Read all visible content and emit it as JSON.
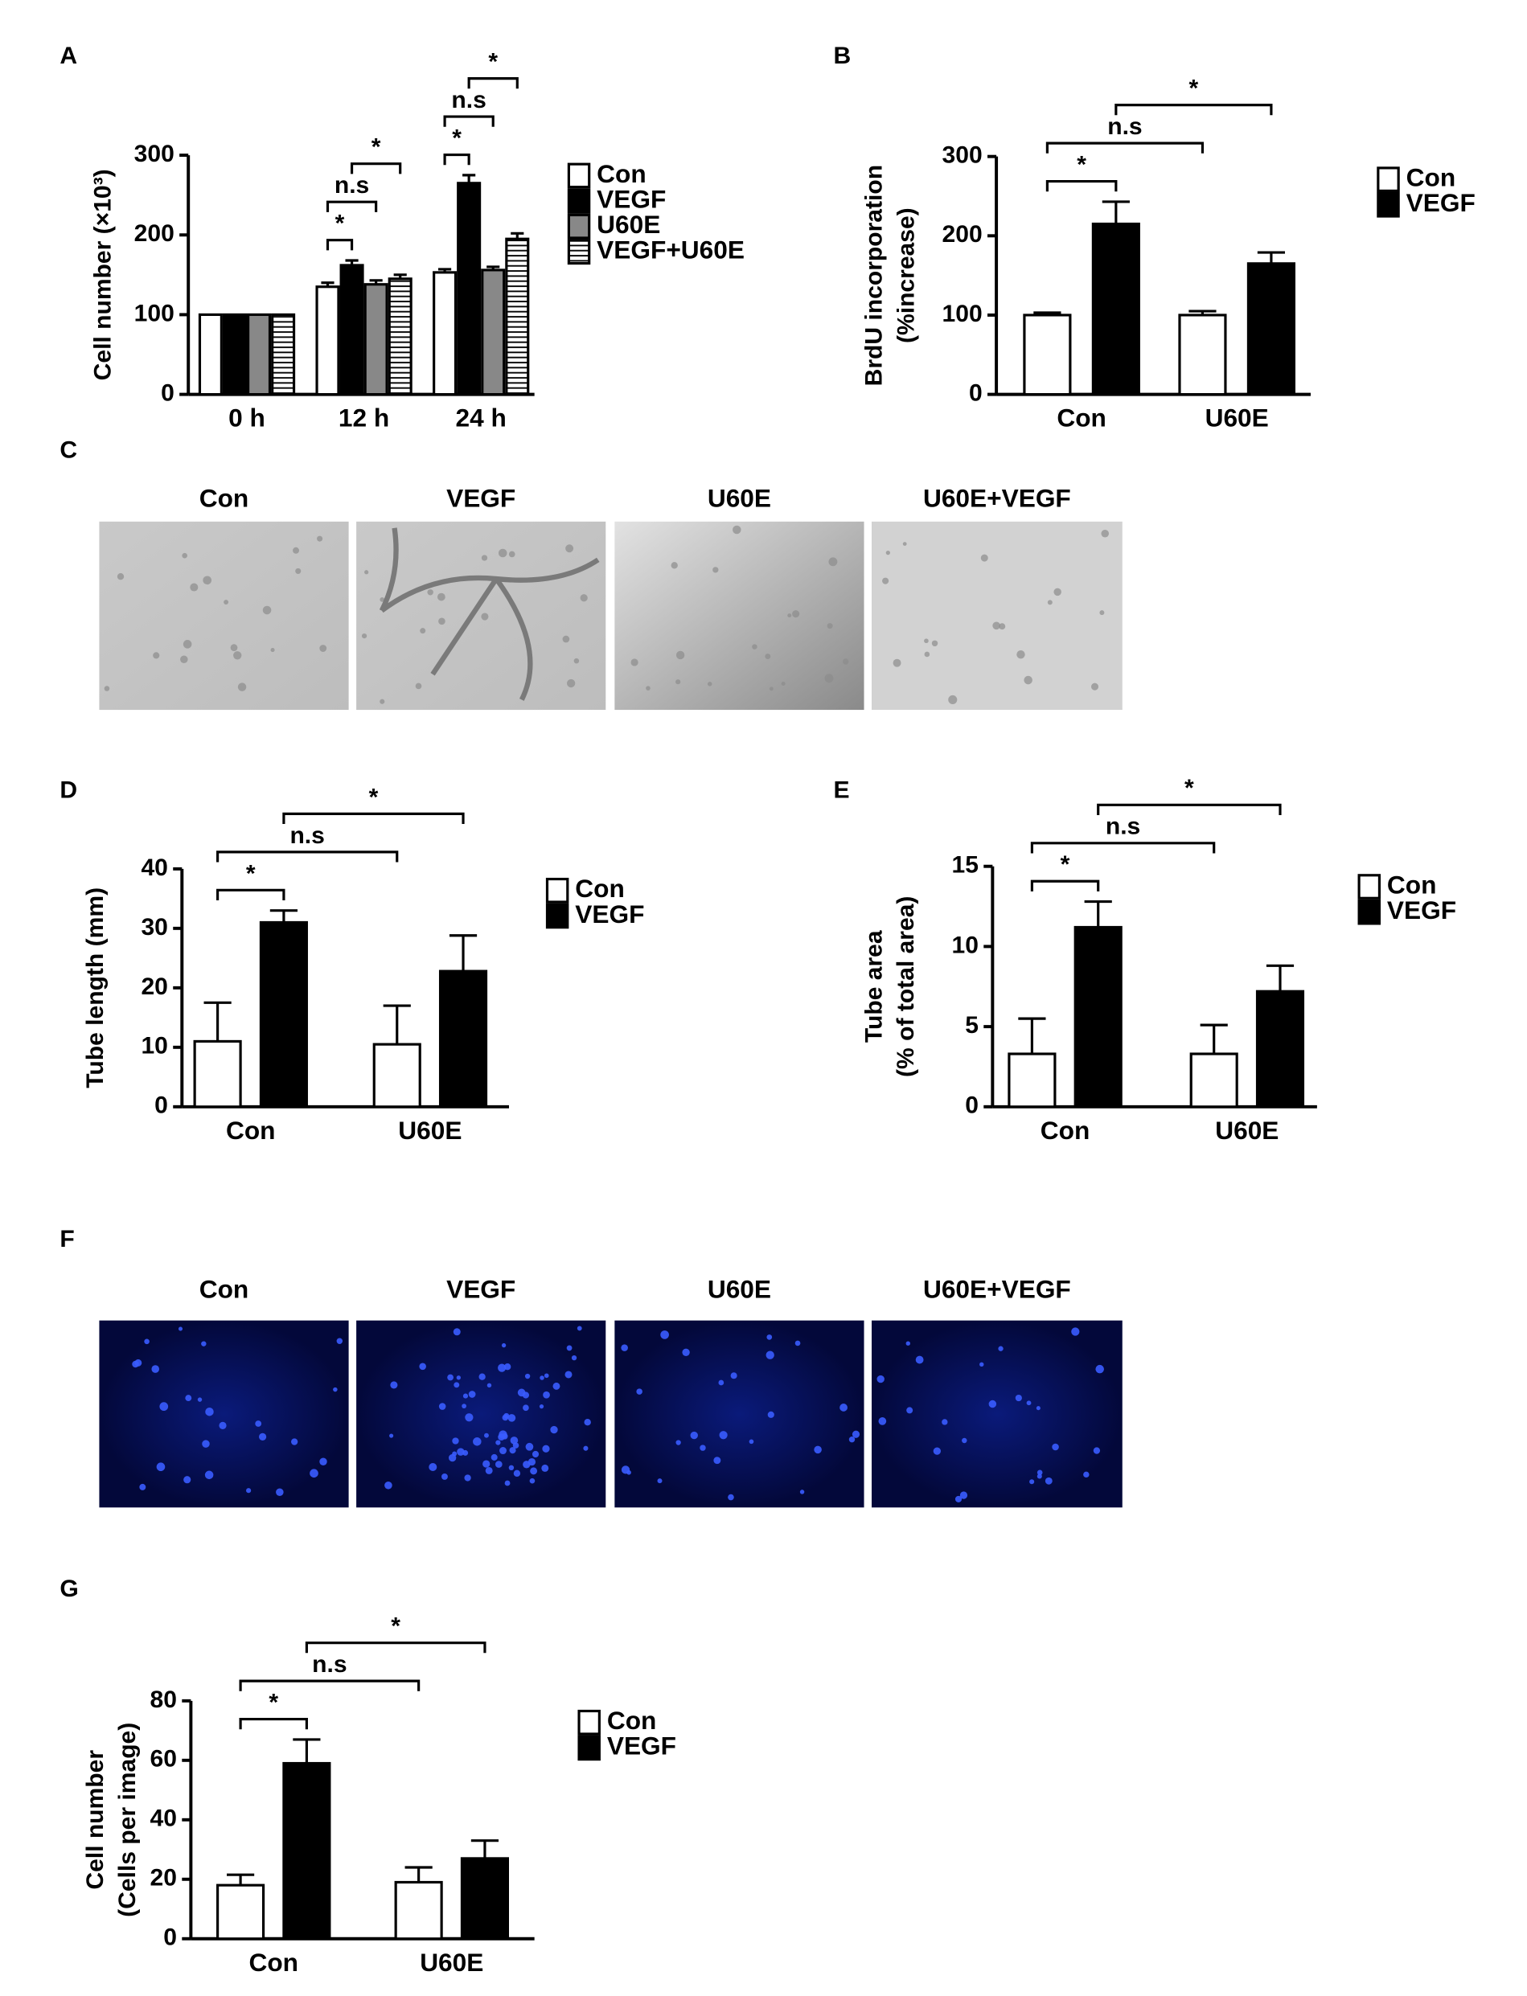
{
  "chart_data": [
    {
      "type": "bar",
      "panel": "A",
      "y_label": [
        "Cell number (×10³)"
      ],
      "categories": [
        "0 h",
        "12 h",
        "24 h"
      ],
      "series": [
        {
          "name": "Con",
          "color": "#ffffff",
          "values": [
            100,
            135,
            153
          ],
          "errors": [
            0,
            5,
            4
          ]
        },
        {
          "name": "VEGF",
          "color": "#000000",
          "values": [
            100,
            162,
            265
          ],
          "errors": [
            0,
            6,
            10
          ]
        },
        {
          "name": "U60E",
          "color": "#888888",
          "values": [
            100,
            138,
            156
          ],
          "errors": [
            0,
            5,
            4
          ]
        },
        {
          "name": "VEGF+U60E",
          "color": "#ffffff",
          "pattern": "horizontal-lines",
          "values": [
            100,
            145,
            195
          ],
          "errors": [
            0,
            5,
            7
          ]
        }
      ],
      "ylim": [
        0,
        300
      ],
      "yticks": [
        0,
        100,
        200,
        300
      ],
      "annotations": [
        {
          "label": "*",
          "from": [
            0,
            1
          ],
          "to": [
            1,
            1
          ]
        },
        {
          "label": "n.s",
          "from": [
            0,
            1
          ],
          "to": [
            2,
            1
          ]
        },
        {
          "label": "*",
          "from": [
            1,
            1
          ],
          "to": [
            3,
            1
          ]
        },
        {
          "label": "*",
          "from": [
            0,
            2
          ],
          "to": [
            1,
            2
          ]
        },
        {
          "label": "n.s",
          "from": [
            0,
            2
          ],
          "to": [
            2,
            2
          ]
        },
        {
          "label": "*",
          "from": [
            1,
            2
          ],
          "to": [
            3,
            2
          ]
        }
      ]
    },
    {
      "type": "bar",
      "panel": "B",
      "y_label": [
        "BrdU incorporation",
        "(%increase)"
      ],
      "categories": [
        "Con",
        "U60E"
      ],
      "series": [
        {
          "name": "Con",
          "color": "#ffffff",
          "values": [
            100,
            100
          ],
          "errors": [
            3,
            5
          ]
        },
        {
          "name": "VEGF",
          "color": "#000000",
          "values": [
            215,
            165
          ],
          "errors": [
            28,
            14
          ]
        }
      ],
      "ylim": [
        0,
        300
      ],
      "yticks": [
        0,
        100,
        200,
        300
      ],
      "annotations": [
        {
          "label": "*",
          "from": [
            0,
            0
          ],
          "to": [
            1,
            0
          ]
        },
        {
          "label": "n.s",
          "from": [
            0,
            0
          ],
          "to": [
            0,
            1
          ]
        },
        {
          "label": "*",
          "from": [
            1,
            0
          ],
          "to": [
            1,
            1
          ]
        }
      ]
    },
    {
      "type": "bar",
      "panel": "D",
      "y_label": [
        "Tube length (mm)"
      ],
      "categories": [
        "Con",
        "U60E"
      ],
      "series": [
        {
          "name": "Con",
          "color": "#ffffff",
          "values": [
            11,
            10.5
          ],
          "errors": [
            6.5,
            6.5
          ]
        },
        {
          "name": "VEGF",
          "color": "#000000",
          "values": [
            31,
            22.8
          ],
          "errors": [
            2,
            6
          ]
        }
      ],
      "ylim": [
        0,
        40
      ],
      "yticks": [
        0,
        10,
        20,
        30,
        40
      ],
      "annotations": [
        {
          "label": "*",
          "from": [
            0,
            0
          ],
          "to": [
            1,
            0
          ]
        },
        {
          "label": "n.s",
          "from": [
            0,
            0
          ],
          "to": [
            0,
            1
          ]
        },
        {
          "label": "*",
          "from": [
            1,
            0
          ],
          "to": [
            1,
            1
          ]
        }
      ]
    },
    {
      "type": "bar",
      "panel": "E",
      "y_label": [
        "Tube area",
        "(% of total area)"
      ],
      "categories": [
        "Con",
        "U60E"
      ],
      "series": [
        {
          "name": "Con",
          "color": "#ffffff",
          "values": [
            3.3,
            3.3
          ],
          "errors": [
            2.2,
            1.8
          ]
        },
        {
          "name": "VEGF",
          "color": "#000000",
          "values": [
            11.2,
            7.2
          ],
          "errors": [
            1.6,
            1.6
          ]
        }
      ],
      "ylim": [
        0,
        15
      ],
      "yticks": [
        0,
        5,
        10,
        15
      ],
      "annotations": [
        {
          "label": "*",
          "from": [
            0,
            0
          ],
          "to": [
            1,
            0
          ]
        },
        {
          "label": "n.s",
          "from": [
            0,
            0
          ],
          "to": [
            0,
            1
          ]
        },
        {
          "label": "*",
          "from": [
            1,
            0
          ],
          "to": [
            1,
            1
          ]
        }
      ]
    },
    {
      "type": "bar",
      "panel": "G",
      "y_label": [
        "Cell number",
        "(Cells per image)"
      ],
      "categories": [
        "Con",
        "U60E"
      ],
      "series": [
        {
          "name": "Con",
          "color": "#ffffff",
          "values": [
            18,
            19
          ],
          "errors": [
            3.5,
            5
          ]
        },
        {
          "name": "VEGF",
          "color": "#000000",
          "values": [
            59,
            27
          ],
          "errors": [
            8,
            6
          ]
        }
      ],
      "ylim": [
        0,
        80
      ],
      "yticks": [
        0,
        20,
        40,
        60,
        80
      ],
      "annotations": [
        {
          "label": "*",
          "from": [
            0,
            0
          ],
          "to": [
            1,
            0
          ]
        },
        {
          "label": "n.s",
          "from": [
            0,
            0
          ],
          "to": [
            0,
            1
          ]
        },
        {
          "label": "*",
          "from": [
            1,
            0
          ],
          "to": [
            1,
            1
          ]
        }
      ]
    }
  ],
  "image_panels": [
    {
      "panel": "C",
      "labels": [
        "Con",
        "VEGF",
        "U60E",
        "U60E+VEGF"
      ]
    },
    {
      "panel": "F",
      "labels": [
        "Con",
        "VEGF",
        "U60E",
        "U60E+VEGF"
      ]
    }
  ]
}
